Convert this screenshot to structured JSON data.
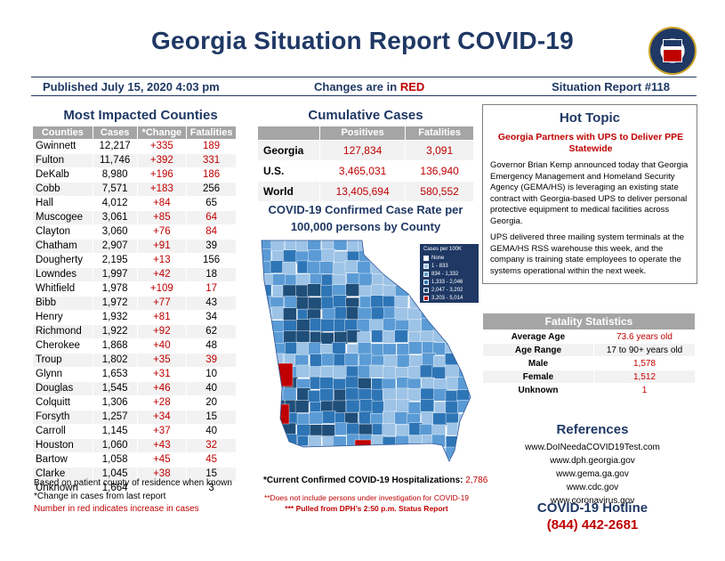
{
  "header": {
    "title": "Georgia Situation Report COVID-19",
    "published": "Published July 15, 2020 4:03 pm",
    "changes_prefix": "Changes are in ",
    "changes_red": "RED",
    "report_number": "Situation Report #118",
    "seal_text": "GEORGIA"
  },
  "counties": {
    "title": "Most Impacted Counties",
    "columns": [
      "Counties",
      "Cases",
      "*Change",
      "Fatalities"
    ],
    "rows": [
      {
        "county": "Gwinnett",
        "cases": "12,217",
        "change": "+335",
        "fatalities": "189",
        "fatal_red": true
      },
      {
        "county": "Fulton",
        "cases": "11,746",
        "change": "+392",
        "fatalities": "331",
        "fatal_red": true
      },
      {
        "county": "DeKalb",
        "cases": "8,980",
        "change": "+196",
        "fatalities": "186",
        "fatal_red": true
      },
      {
        "county": "Cobb",
        "cases": "7,571",
        "change": "+183",
        "fatalities": "256",
        "fatal_red": false
      },
      {
        "county": "Hall",
        "cases": "4,012",
        "change": "+84",
        "fatalities": "65",
        "fatal_red": false
      },
      {
        "county": "Muscogee",
        "cases": "3,061",
        "change": "+85",
        "fatalities": "64",
        "fatal_red": true
      },
      {
        "county": "Clayton",
        "cases": "3,060",
        "change": "+76",
        "fatalities": "84",
        "fatal_red": true
      },
      {
        "county": "Chatham",
        "cases": "2,907",
        "change": "+91",
        "fatalities": "39",
        "fatal_red": false
      },
      {
        "county": "Dougherty",
        "cases": "2,195",
        "change": "+13",
        "fatalities": "156",
        "fatal_red": false
      },
      {
        "county": "Lowndes",
        "cases": "1,997",
        "change": "+42",
        "fatalities": "18",
        "fatal_red": false
      },
      {
        "county": "Whitfield",
        "cases": "1,978",
        "change": "+109",
        "fatalities": "17",
        "fatal_red": true
      },
      {
        "county": "Bibb",
        "cases": "1,972",
        "change": "+77",
        "fatalities": "43",
        "fatal_red": false
      },
      {
        "county": "Henry",
        "cases": "1,932",
        "change": "+81",
        "fatalities": "34",
        "fatal_red": false
      },
      {
        "county": "Richmond",
        "cases": "1,922",
        "change": "+92",
        "fatalities": "62",
        "fatal_red": false
      },
      {
        "county": "Cherokee",
        "cases": "1,868",
        "change": "+40",
        "fatalities": "48",
        "fatal_red": false
      },
      {
        "county": "Troup",
        "cases": "1,802",
        "change": "+35",
        "fatalities": "39",
        "fatal_red": true
      },
      {
        "county": "Glynn",
        "cases": "1,653",
        "change": "+31",
        "fatalities": "10",
        "fatal_red": false
      },
      {
        "county": "Douglas",
        "cases": "1,545",
        "change": "+46",
        "fatalities": "40",
        "fatal_red": false
      },
      {
        "county": "Colquitt",
        "cases": "1,306",
        "change": "+28",
        "fatalities": "20",
        "fatal_red": false
      },
      {
        "county": "Forsyth",
        "cases": "1,257",
        "change": "+34",
        "fatalities": "15",
        "fatal_red": false
      },
      {
        "county": "Carroll",
        "cases": "1,145",
        "change": "+37",
        "fatalities": "40",
        "fatal_red": false
      },
      {
        "county": "Houston",
        "cases": "1,060",
        "change": "+43",
        "fatalities": "32",
        "fatal_red": true
      },
      {
        "county": "Bartow",
        "cases": "1,058",
        "change": "+45",
        "fatalities": "45",
        "fatal_red": true
      },
      {
        "county": "Clarke",
        "cases": "1,045",
        "change": "+38",
        "fatalities": "15",
        "fatal_red": false
      },
      {
        "county": "Unknown",
        "cases": "1,664",
        "change": "",
        "fatalities": "3",
        "fatal_red": false
      }
    ],
    "notes": [
      "Based on patient county of residence when known",
      "*Change in cases from last report",
      "Number in red indicates increase in cases"
    ]
  },
  "cumulative": {
    "title": "Cumulative Cases",
    "columns": [
      "",
      "Positives",
      "Fatalities"
    ],
    "rows": [
      {
        "label": "Georgia",
        "positives": "127,834",
        "fatalities": "3,091"
      },
      {
        "label": "U.S.",
        "positives": "3,465,031",
        "fatalities": "136,940"
      },
      {
        "label": "World",
        "positives": "13,405,694",
        "fatalities": "580,552"
      }
    ]
  },
  "map": {
    "title_line1": "COVID-19 Confirmed Case Rate per",
    "title_line2": "100,000 persons by County",
    "legend_title": "Cases per 100K",
    "legend": [
      {
        "label": "None",
        "color": "#ffffff"
      },
      {
        "label": "1 - 833",
        "color": "#9dc3e6"
      },
      {
        "label": "834 - 1,332",
        "color": "#5b9bd5"
      },
      {
        "label": "1,333 - 2,046",
        "color": "#2e75b6"
      },
      {
        "label": "2,047 - 3,202",
        "color": "#1f4e79"
      },
      {
        "label": "3,203 - 5,014",
        "color": "#c00000"
      }
    ]
  },
  "hospitalizations": {
    "label": "*Current Confirmed COVID-19 Hospitalizations: ",
    "value": "2,786",
    "note1": "**Does not include persons under investigation for COVID-19",
    "note2": "*** Pulled from DPH’s 2:50 p.m. Status Report"
  },
  "hot_topic": {
    "title": "Hot Topic",
    "subtitle": "Georgia Partners with UPS to Deliver PPE Statewide",
    "para1": "Governor Brian Kemp announced today that Georgia Emergency Management and Homeland Security Agency (GEMA/HS) is leveraging an existing state contract with Georgia-based UPS to deliver personal protective equipment to medical facilities across Georgia.",
    "para2": "UPS delivered three mailing system terminals at the GEMA/HS RSS warehouse this week, and the company is training state employees to operate the systems operational within the next week."
  },
  "fatality": {
    "title": "Fatality Statistics",
    "rows": [
      {
        "label": "Average Age",
        "value": "73.6 years old",
        "red": true
      },
      {
        "label": "Age Range",
        "value": "17 to 90+ years old",
        "red": false
      },
      {
        "label": "Male",
        "value": "1,578",
        "red": true
      },
      {
        "label": "Female",
        "value": "1,512",
        "red": true
      },
      {
        "label": "Unknown",
        "value": "1",
        "red": true
      }
    ]
  },
  "references": {
    "title": "References",
    "links": [
      "www.DoINeedaCOVID19Test.com",
      "www.dph.georgia.gov",
      "www.gema.ga.gov",
      "www.cdc.gov",
      "www.coronavirus.gov"
    ]
  },
  "hotline": {
    "title": "COVID-19 Hotline",
    "number": "(844) 442-2681"
  }
}
